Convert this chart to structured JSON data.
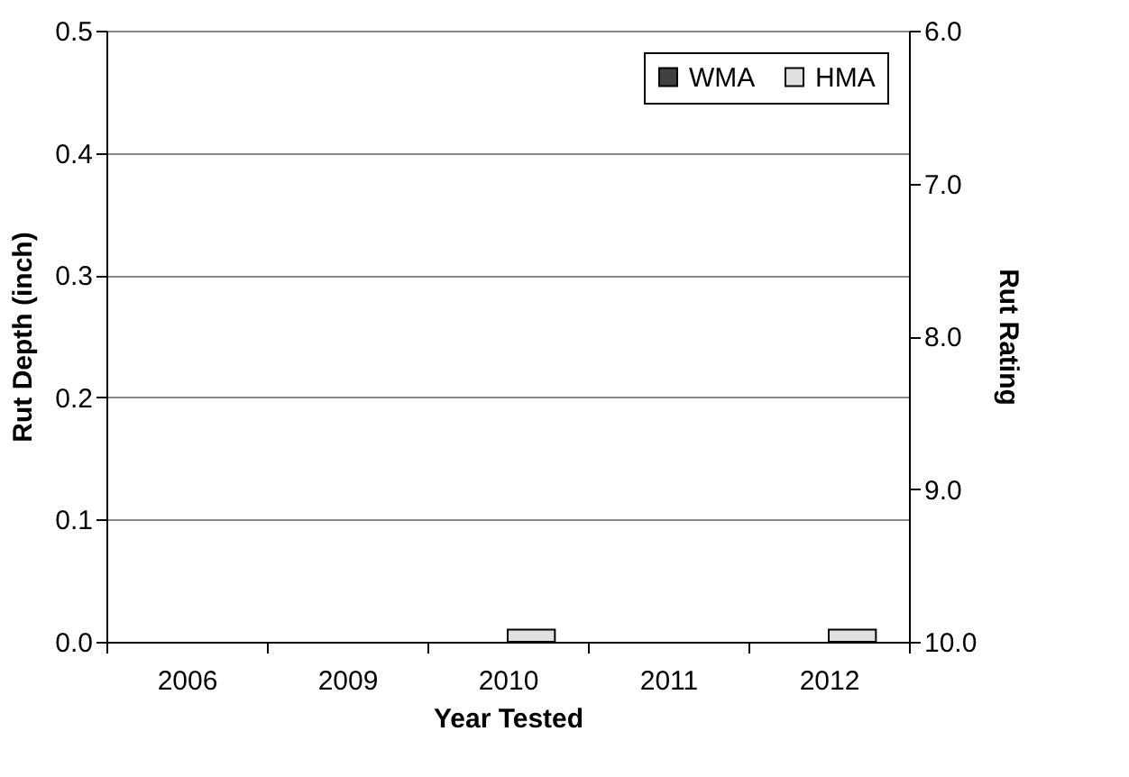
{
  "chart_data": {
    "type": "bar",
    "xlabel": "Year Tested",
    "ylabel": "Rut Depth (inch)",
    "y2label": "Rut Rating",
    "categories": [
      "2006",
      "2009",
      "2010",
      "2011",
      "2012"
    ],
    "series": [
      {
        "name": "WMA",
        "color": "#404040",
        "values": [
          null,
          null,
          null,
          null,
          null
        ]
      },
      {
        "name": "HMA",
        "color": "#e0e0e0",
        "values": [
          null,
          null,
          0.01,
          null,
          0.01
        ]
      }
    ],
    "ylim": [
      0,
      0.5
    ],
    "yticks": [
      {
        "value": 0,
        "label": "0.0"
      },
      {
        "value": 0.1,
        "label": "0.1"
      },
      {
        "value": 0.2,
        "label": "0.2"
      },
      {
        "value": 0.3,
        "label": "0.3"
      },
      {
        "value": 0.4,
        "label": "0.4"
      },
      {
        "value": 0.5,
        "label": "0.5"
      }
    ],
    "y2lim": [
      10,
      6
    ],
    "y2ticks": [
      {
        "value": 10,
        "label": "10.0"
      },
      {
        "value": 9,
        "label": "9.0"
      },
      {
        "value": 8,
        "label": "8.0"
      },
      {
        "value": 7,
        "label": "7.0"
      },
      {
        "value": 6,
        "label": "6.0"
      }
    ],
    "grid": "y",
    "legend": "top right"
  }
}
